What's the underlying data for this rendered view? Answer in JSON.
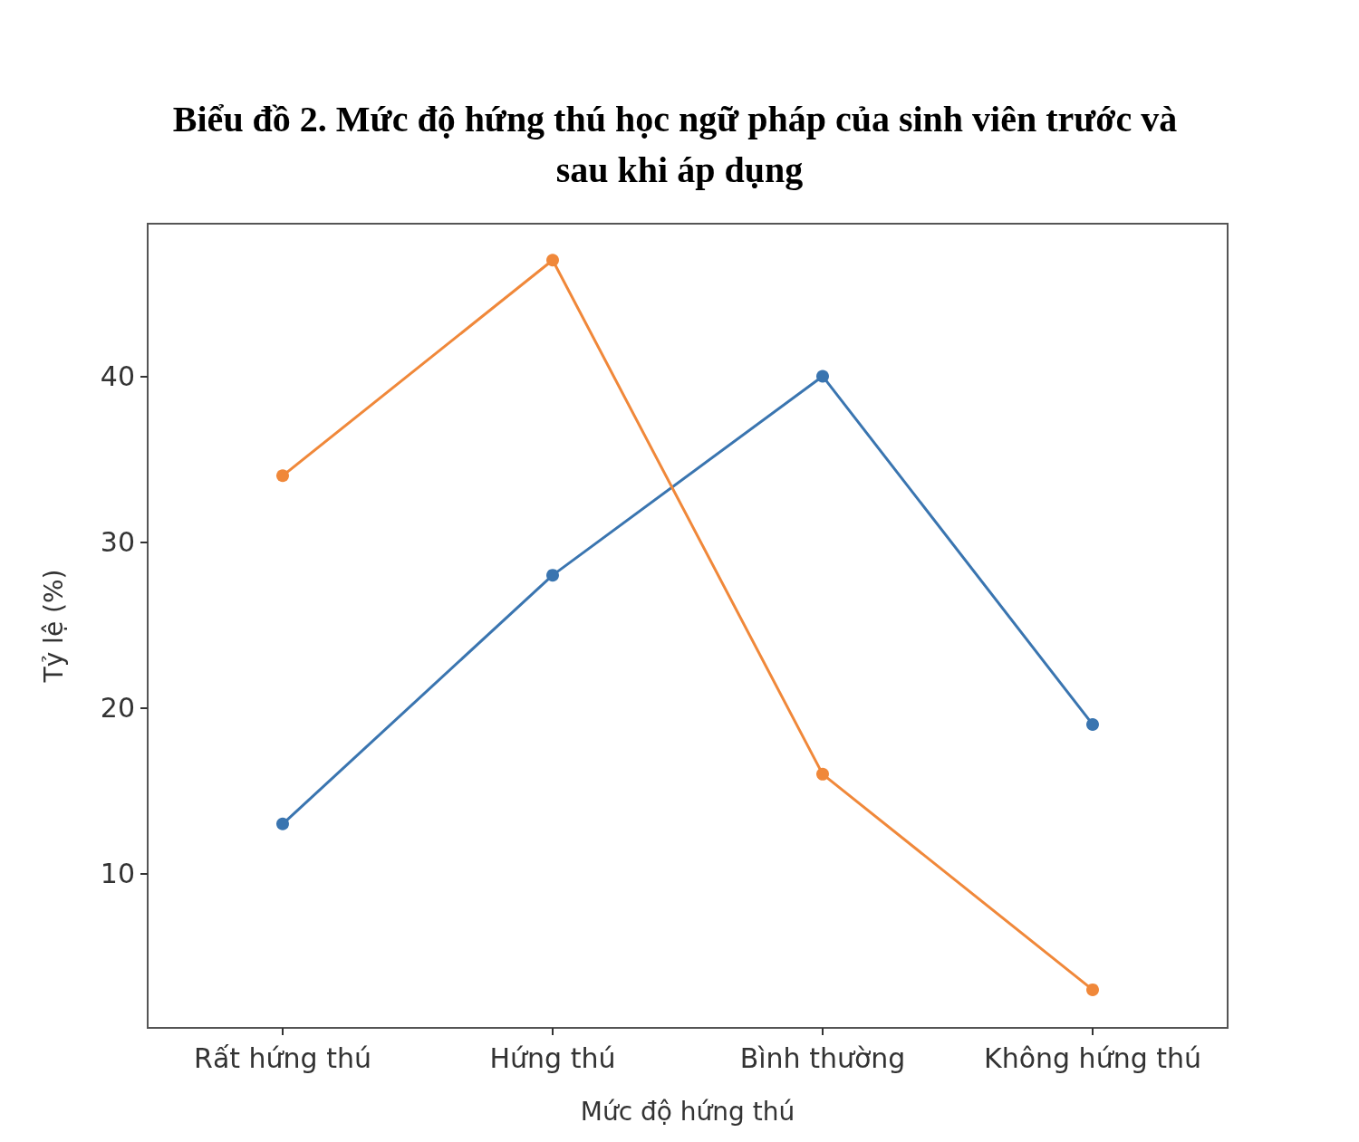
{
  "chart_data": {
    "type": "line",
    "title": "Biểu đồ 2. Mức độ hứng thú học ngữ pháp của sinh viên trước và sau khi áp dụng",
    "xlabel": "Mức độ hứng thú",
    "ylabel": "Tỷ lệ (%)",
    "categories": [
      "Rất hứng thú",
      "Hứng thú",
      "Bình thường",
      "Không hứng thú"
    ],
    "series": [
      {
        "color": "#3a75b0",
        "values": [
          13,
          28,
          40,
          19
        ]
      },
      {
        "color": "#f0883a",
        "values": [
          34,
          47,
          16,
          3
        ]
      }
    ],
    "ylim": [
      0.7,
      49.2
    ],
    "yticks": [
      10,
      20,
      30,
      40
    ],
    "grid": false,
    "marker": "circle",
    "line_style": "solid"
  }
}
